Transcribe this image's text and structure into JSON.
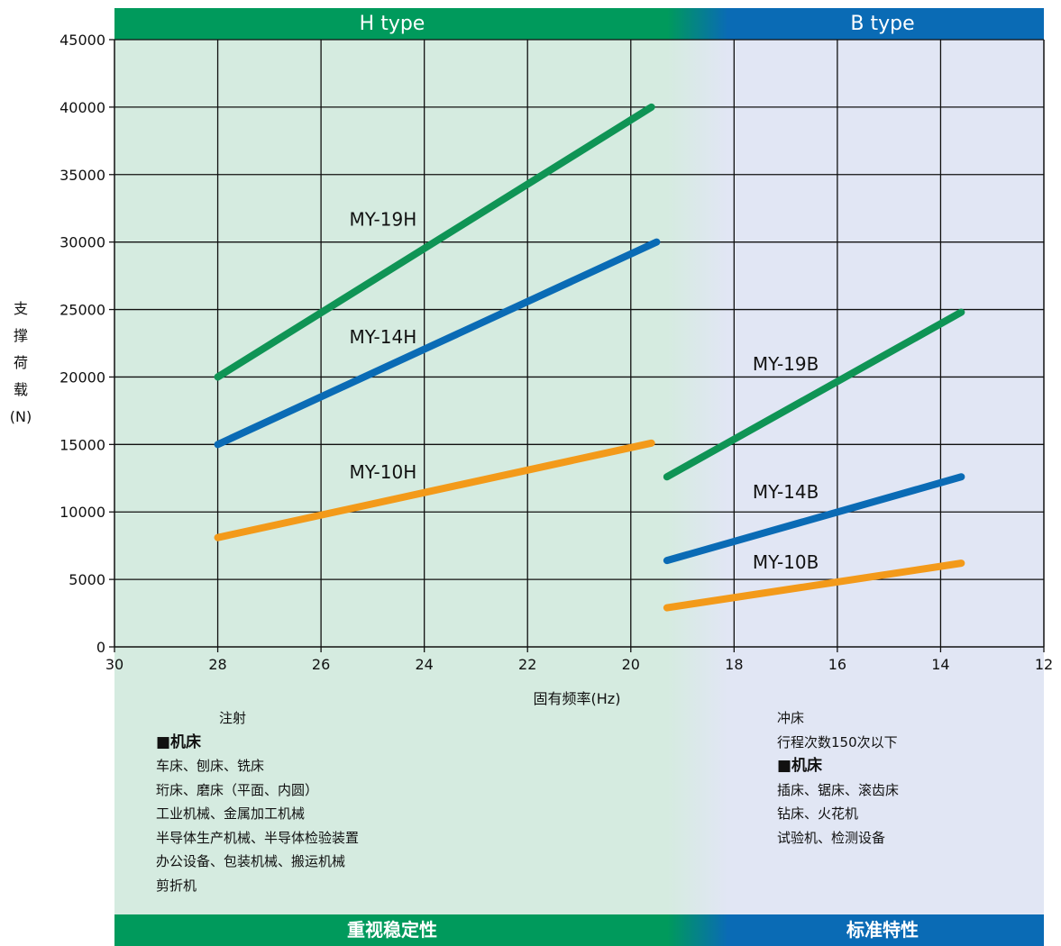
{
  "chart_data": {
    "type": "line",
    "title": "",
    "xlabel": "固有频率(Hz)",
    "ylabel_chars": [
      "支",
      "撑",
      "荷",
      "载",
      "(N)"
    ],
    "xlim": [
      30,
      12
    ],
    "ylim": [
      0,
      45000
    ],
    "x_ticks": [
      30,
      28,
      26,
      24,
      22,
      20,
      18,
      16,
      14,
      12
    ],
    "y_ticks": [
      0,
      5000,
      10000,
      15000,
      20000,
      25000,
      30000,
      35000,
      40000,
      45000
    ],
    "grid": true,
    "series": [
      {
        "name": "MY-19H",
        "color": "#0f9455",
        "x": [
          28,
          19.6
        ],
        "y": [
          20000,
          40000
        ],
        "label_at": [
          24.8,
          31200
        ]
      },
      {
        "name": "MY-14H",
        "color": "#0a6bb5",
        "x": [
          28,
          19.5
        ],
        "y": [
          15000,
          30000
        ],
        "label_at": [
          24.8,
          22500
        ]
      },
      {
        "name": "MY-10H",
        "color": "#f39a1a",
        "x": [
          28,
          19.6
        ],
        "y": [
          8100,
          15100
        ],
        "label_at": [
          24.8,
          12500
        ]
      },
      {
        "name": "MY-19B",
        "color": "#0f9455",
        "x": [
          19.3,
          13.6
        ],
        "y": [
          12600,
          24800
        ],
        "label_at": [
          17.0,
          20500
        ]
      },
      {
        "name": "MY-14B",
        "color": "#0a6bb5",
        "x": [
          19.3,
          13.6
        ],
        "y": [
          6400,
          12600
        ],
        "label_at": [
          17.0,
          11000
        ]
      },
      {
        "name": "MY-10B",
        "color": "#f39a1a",
        "x": [
          19.3,
          13.6
        ],
        "y": [
          2900,
          6200
        ],
        "label_at": [
          17.0,
          5800
        ]
      }
    ]
  },
  "banners": {
    "top_h": "H type",
    "top_b": "B type",
    "bottom_h": "重视稳定性",
    "bottom_b": "标准特性"
  },
  "colors": {
    "h_banner": "#009a5c",
    "b_banner": "#0a6bb5",
    "h_zone": "#d5ebe0",
    "b_zone": "#e1e6f4"
  },
  "applications": {
    "h": {
      "top": "注射",
      "heading": "■机床",
      "lines": [
        "车床、刨床、铣床",
        "珩床、磨床（平面、内圆）",
        "工业机械、金属加工机械",
        "半导体生产机械、半导体检验装置",
        "办公设备、包装机械、搬运机械",
        "剪折机"
      ]
    },
    "b": {
      "top": [
        "冲床",
        "行程次数150次以下"
      ],
      "heading": "■机床",
      "lines": [
        "插床、锯床、滚齿床",
        "钻床、火花机",
        "试验机、检测设备"
      ]
    }
  }
}
